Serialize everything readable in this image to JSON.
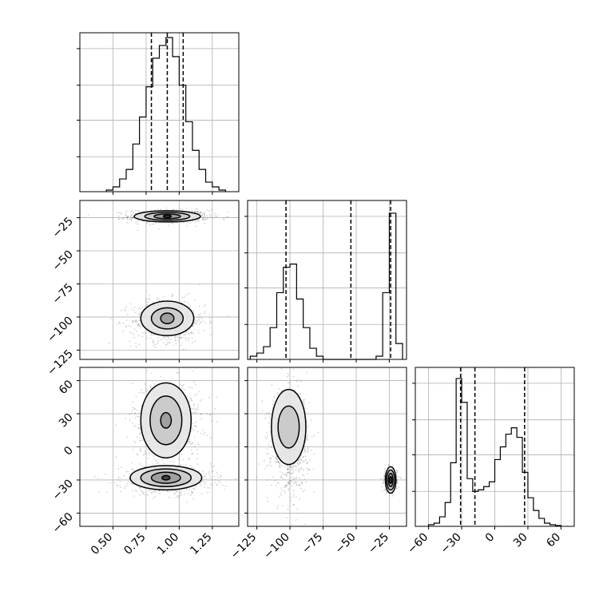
{
  "chart_data": [
    {
      "type": "histogram",
      "panel": "p1_marginal",
      "xlim": [
        0.25,
        1.45
      ],
      "ylim": [
        0,
        1.0
      ],
      "grid": true,
      "quantiles": [
        0.79,
        0.91,
        1.03
      ],
      "bin_edges": [
        0.45,
        0.5,
        0.55,
        0.6,
        0.65,
        0.7,
        0.75,
        0.8,
        0.85,
        0.9,
        0.95,
        1.0,
        1.05,
        1.1,
        1.15,
        1.2,
        1.25,
        1.3,
        1.35
      ],
      "counts": [
        0.01,
        0.03,
        0.08,
        0.14,
        0.3,
        0.47,
        0.66,
        0.84,
        0.92,
        0.97,
        0.85,
        0.67,
        0.44,
        0.26,
        0.14,
        0.06,
        0.03,
        0.01
      ]
    },
    {
      "type": "histogram",
      "panel": "p2_marginal",
      "xlim": [
        -132,
        -12
      ],
      "ylim": [
        0,
        1.0
      ],
      "grid": true,
      "quantiles": [
        -103,
        -54,
        -24
      ],
      "bin_edges": [
        -130,
        -125,
        -120,
        -115,
        -110,
        -105,
        -100,
        -95,
        -90,
        -85,
        -80,
        -75,
        -70,
        -65,
        -60,
        -55,
        -50,
        -45,
        -40,
        -35,
        -30,
        -25,
        -20,
        -15
      ],
      "counts": [
        0.02,
        0.04,
        0.08,
        0.2,
        0.42,
        0.58,
        0.6,
        0.38,
        0.2,
        0.07,
        0.02,
        0,
        0,
        0,
        0,
        0,
        0,
        0,
        0,
        0.02,
        0.42,
        0.92,
        0.1
      ]
    },
    {
      "type": "histogram",
      "panel": "p3_marginal",
      "xlim": [
        -72,
        72
      ],
      "ylim": [
        0,
        1.0
      ],
      "grid": true,
      "quantiles": [
        -31,
        -18,
        27
      ],
      "bin_edges": [
        -60,
        -55,
        -50,
        -45,
        -40,
        -35,
        -30,
        -25,
        -20,
        -15,
        -10,
        -5,
        0,
        5,
        10,
        15,
        20,
        25,
        30,
        35,
        40,
        45,
        50,
        55,
        60
      ],
      "counts": [
        0.01,
        0.02,
        0.06,
        0.15,
        0.4,
        0.93,
        0.78,
        0.3,
        0.22,
        0.23,
        0.25,
        0.28,
        0.42,
        0.5,
        0.58,
        0.62,
        0.56,
        0.34,
        0.18,
        0.1,
        0.05,
        0.02,
        0.01,
        0.005
      ]
    },
    {
      "type": "scatter",
      "panel": "p1_vs_p2",
      "xlim": [
        0.25,
        1.45
      ],
      "ylim": [
        -132,
        -12
      ],
      "clusters": [
        {
          "cx": 0.92,
          "cy": -24,
          "sx": 0.15,
          "sy": 2.5,
          "n": 700
        },
        {
          "cx": 0.92,
          "cy": -103,
          "sx": 0.14,
          "sy": 8.0,
          "n": 700
        }
      ],
      "contours": [
        {
          "cx": 0.91,
          "cy": -24,
          "levels": [
            [
              0.25,
              4.2
            ],
            [
              0.17,
              3.0
            ],
            [
              0.1,
              1.8
            ],
            [
              0.03,
              0.9
            ]
          ]
        },
        {
          "cx": 0.91,
          "cy": -101,
          "levels": [
            [
              0.2,
              13
            ],
            [
              0.12,
              8
            ],
            [
              0.05,
              4
            ]
          ]
        }
      ]
    },
    {
      "type": "scatter",
      "panel": "p1_vs_p3",
      "xlim": [
        0.25,
        1.45
      ],
      "ylim": [
        -72,
        72
      ],
      "clusters": [
        {
          "cx": 0.91,
          "cy": 24,
          "sx": 0.13,
          "sy": 18,
          "n": 700
        },
        {
          "cx": 0.91,
          "cy": -30,
          "sx": 0.17,
          "sy": 6.5,
          "n": 700
        }
      ],
      "contours": [
        {
          "cx": 0.9,
          "cy": 24,
          "levels": [
            [
              0.19,
              34
            ],
            [
              0.12,
              22
            ],
            [
              0.04,
              7
            ]
          ]
        },
        {
          "cx": 0.9,
          "cy": -28,
          "levels": [
            [
              0.27,
              11
            ],
            [
              0.19,
              8
            ],
            [
              0.11,
              5
            ],
            [
              0.03,
              2
            ]
          ]
        }
      ]
    },
    {
      "type": "scatter",
      "panel": "p2_vs_p3",
      "xlim": [
        -132,
        -12
      ],
      "ylim": [
        -72,
        72
      ],
      "clusters": [
        {
          "cx": -100,
          "cy": 5,
          "sx": 7,
          "sy": 22,
          "n": 900
        },
        {
          "cx": -24,
          "cy": -30,
          "sx": 2.4,
          "sy": 5,
          "n": 500
        }
      ],
      "contours": [
        {
          "cx": -101,
          "cy": 18,
          "levels": [
            [
              13,
              34
            ],
            [
              8,
              19
            ]
          ]
        },
        {
          "cx": -24,
          "cy": -30,
          "levels": [
            [
              4.0,
              12
            ],
            [
              3.0,
              9
            ],
            [
              1.8,
              6
            ],
            [
              0.9,
              3
            ]
          ]
        }
      ]
    }
  ],
  "tick_labels": {
    "p1": [
      "0.50",
      "0.75",
      "1.00",
      "1.25"
    ],
    "p2": [
      "−125",
      "−100",
      "−75",
      "−50",
      "−25"
    ],
    "p3": [
      "−60",
      "−30",
      "0",
      "30",
      "60"
    ]
  }
}
